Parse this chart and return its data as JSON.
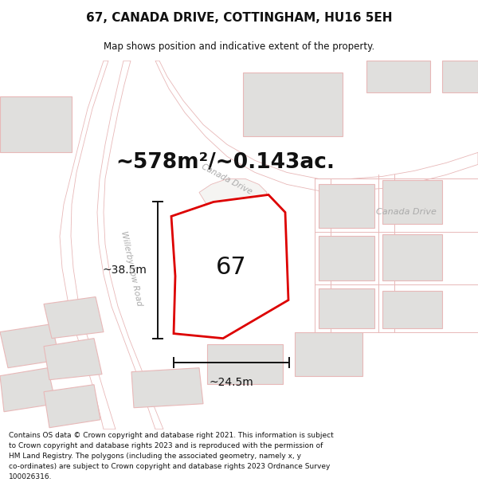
{
  "title": "67, CANADA DRIVE, COTTINGHAM, HU16 5EH",
  "subtitle": "Map shows position and indicative extent of the property.",
  "area_text": "~578m²/~0.143ac.",
  "label_67": "67",
  "dim_width": "~24.5m",
  "dim_height": "~38.5m",
  "footer": "Contains OS data © Crown copyright and database right 2021. This information is subject to Crown copyright and database rights 2023 and is reproduced with the permission of HM Land Registry. The polygons (including the associated geometry, namely x, y co-ordinates) are subject to Crown copyright and database rights 2023 Ordnance Survey 100026316.",
  "map_bg": "#f5f4f2",
  "road_fill": "#ffffff",
  "road_outline": "#e8b8b8",
  "road_label_color": "#aaaaaa",
  "plot_outline_color": "#dd0000",
  "building_fill": "#e0dfdd",
  "building_outline": "#e8b8b8",
  "text_color": "#111111",
  "footer_bg": "#ffffff",
  "dim_color": "#111111",
  "willerby_line": "#aaaacc",
  "canada_drive_line": "#ddbbbb"
}
